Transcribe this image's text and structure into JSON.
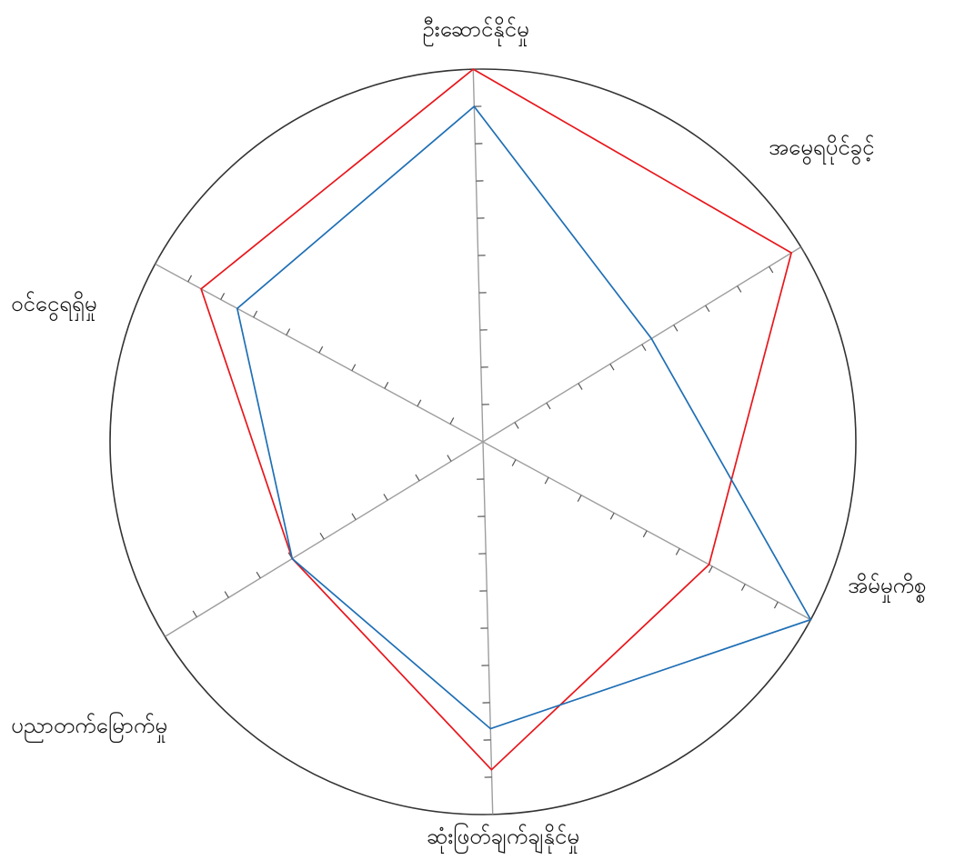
{
  "chart_data": {
    "type": "radar",
    "title": "",
    "axes": [
      "ဦးဆောင်နိုင်မှု",
      "အမွေရပိုင်ခွင့်",
      "အိမ်မှုကိစ္စ",
      "ဆုံးဖြတ်ချက်ချနိုင်မှု",
      "ပညာတက်မြောက်မှု",
      "ဝင်ငွေရရှိမှု"
    ],
    "rmax": 10,
    "tick_count": 10,
    "legend": "none",
    "grid": false,
    "series": [
      {
        "color": "#e8161b",
        "values": [
          10.0,
          9.7,
          6.9,
          8.8,
          6.0,
          8.6
        ]
      },
      {
        "color": "#1f6fb5",
        "values": [
          9.0,
          5.3,
          10.0,
          7.7,
          6.0,
          7.5
        ]
      }
    ],
    "colors": {
      "circle": "#333333",
      "spoke": "#9e9e9e",
      "tick": "#555555"
    }
  }
}
